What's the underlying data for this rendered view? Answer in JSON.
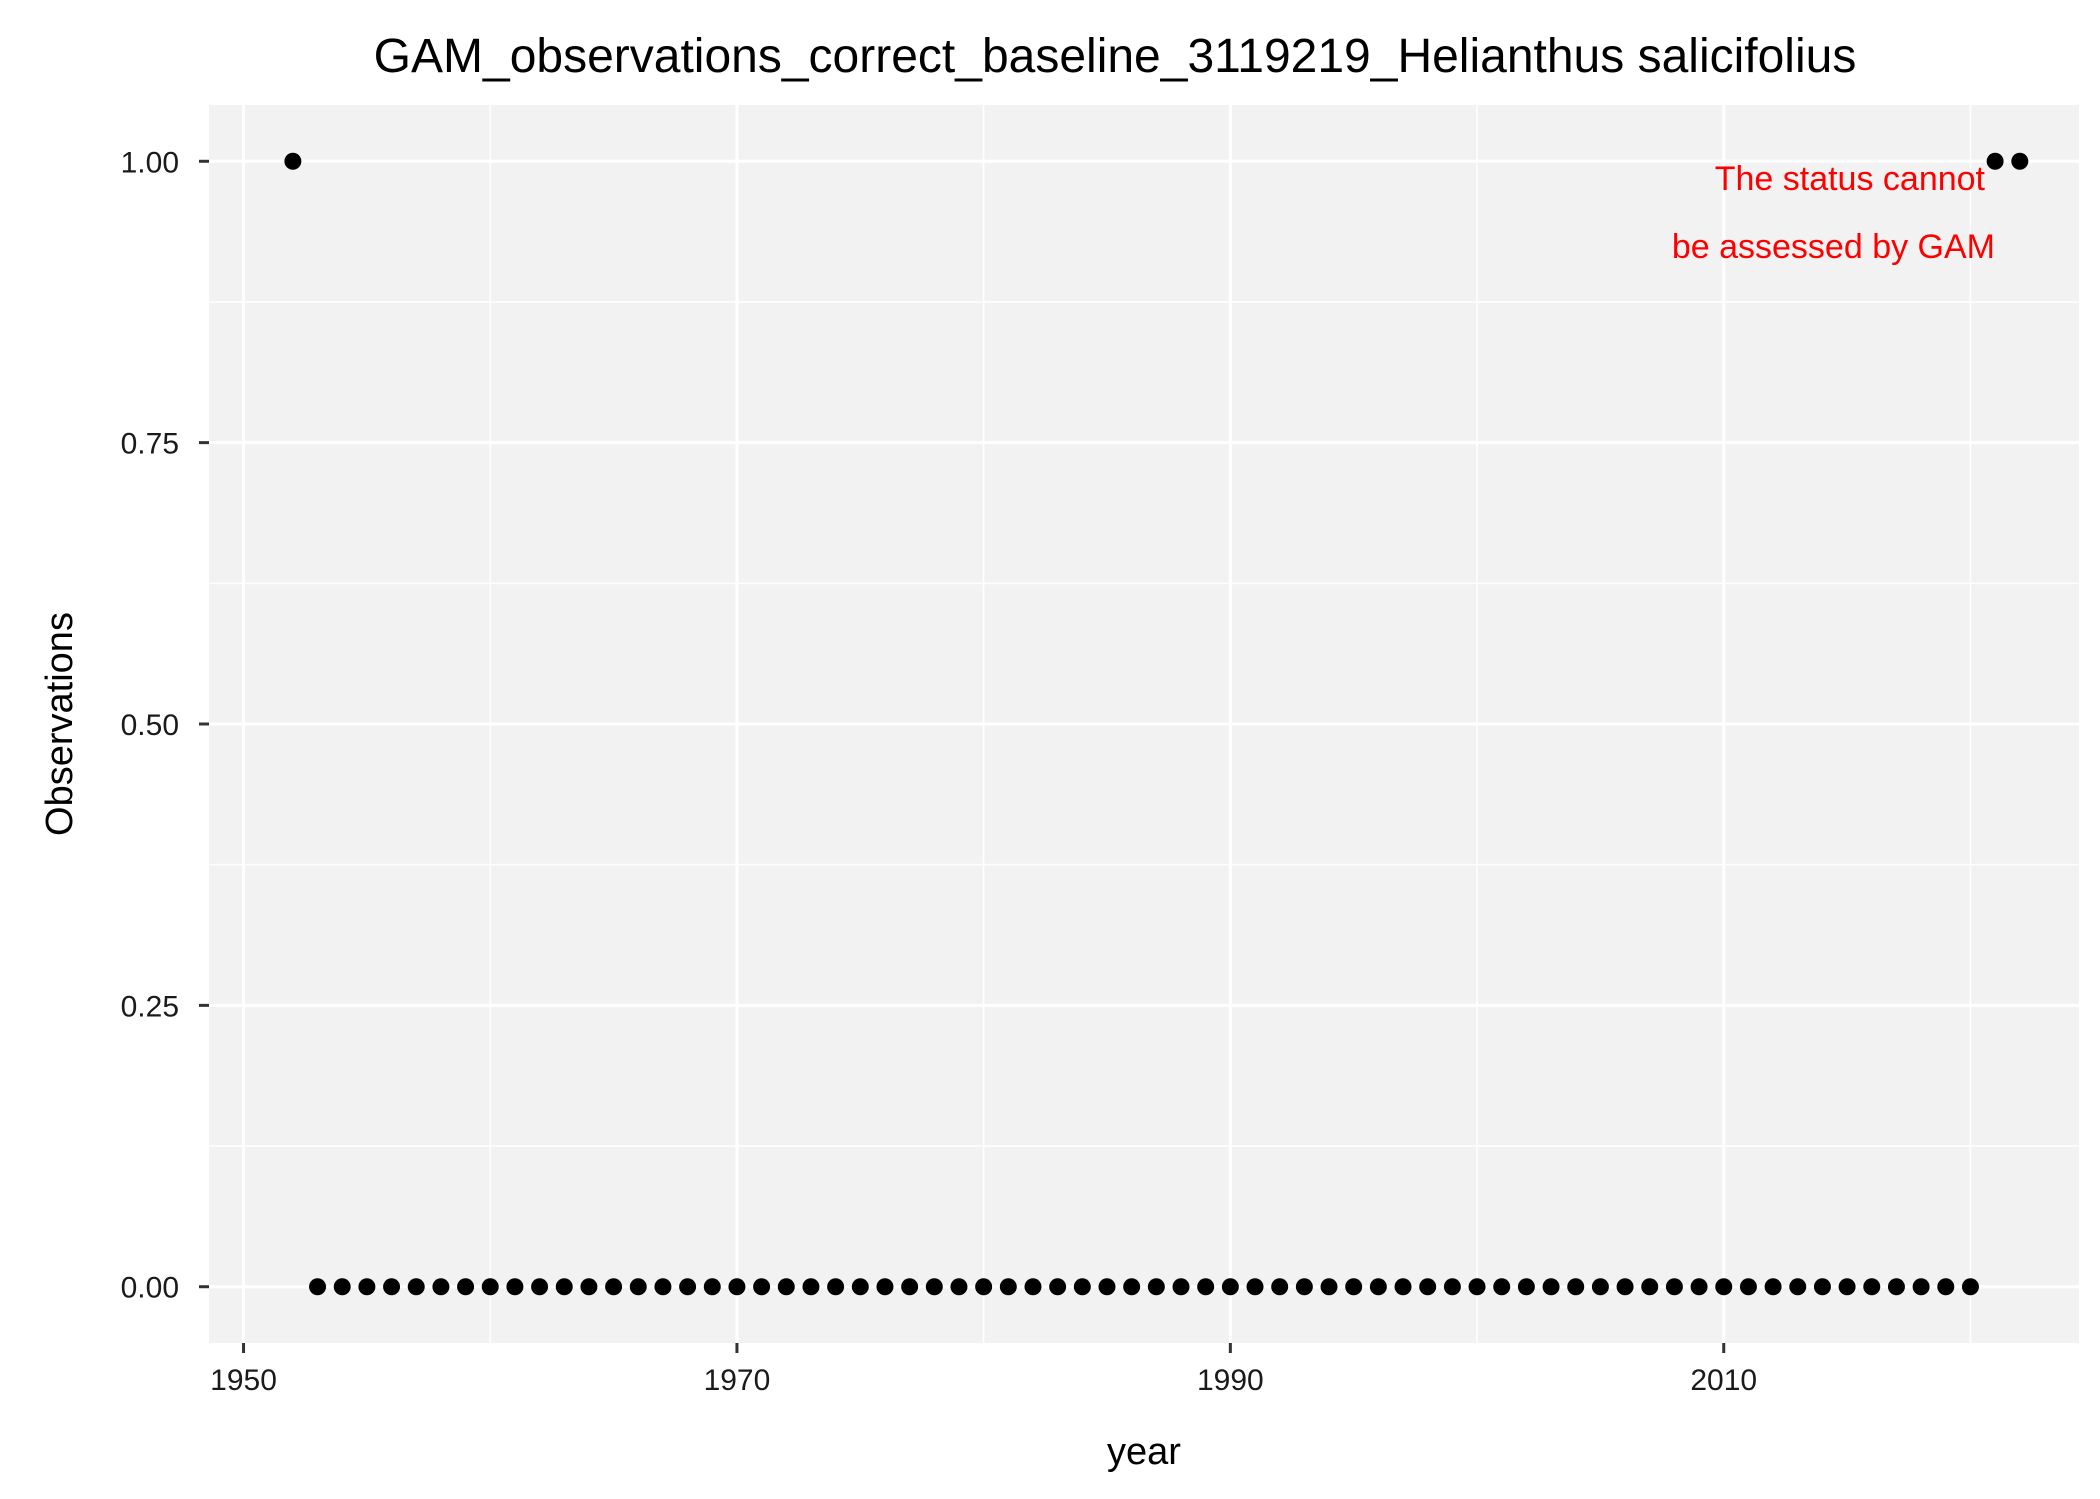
{
  "chart_data": {
    "type": "scatter",
    "title": "GAM_observations_correct_baseline_3119219_Helianthus salicifolius",
    "xlabel": "year",
    "ylabel": "Observations",
    "xlim": [
      1948.6,
      2024.4
    ],
    "ylim": [
      -0.05,
      1.05
    ],
    "x_ticks": [
      1950,
      1970,
      1990,
      2010
    ],
    "x_tick_labels": [
      "1950",
      "1970",
      "1990",
      "2010"
    ],
    "y_ticks": [
      0,
      0.25,
      0.5,
      0.75,
      1
    ],
    "y_tick_labels": [
      "0.00",
      "0.25",
      "0.50",
      "0.75",
      "1.00"
    ],
    "grid": true,
    "annotation": {
      "lines": [
        "The status cannot",
        "be assessed by GAM"
      ],
      "color": "#ff0000"
    },
    "point_color": "#000000",
    "background_color": "#f2f2f2",
    "points": [
      {
        "x": 1952,
        "y": 1
      },
      {
        "x": 1953,
        "y": 0
      },
      {
        "x": 1954,
        "y": 0
      },
      {
        "x": 1955,
        "y": 0
      },
      {
        "x": 1956,
        "y": 0
      },
      {
        "x": 1957,
        "y": 0
      },
      {
        "x": 1958,
        "y": 0
      },
      {
        "x": 1959,
        "y": 0
      },
      {
        "x": 1960,
        "y": 0
      },
      {
        "x": 1961,
        "y": 0
      },
      {
        "x": 1962,
        "y": 0
      },
      {
        "x": 1963,
        "y": 0
      },
      {
        "x": 1964,
        "y": 0
      },
      {
        "x": 1965,
        "y": 0
      },
      {
        "x": 1966,
        "y": 0
      },
      {
        "x": 1967,
        "y": 0
      },
      {
        "x": 1968,
        "y": 0
      },
      {
        "x": 1969,
        "y": 0
      },
      {
        "x": 1970,
        "y": 0
      },
      {
        "x": 1971,
        "y": 0
      },
      {
        "x": 1972,
        "y": 0
      },
      {
        "x": 1973,
        "y": 0
      },
      {
        "x": 1974,
        "y": 0
      },
      {
        "x": 1975,
        "y": 0
      },
      {
        "x": 1976,
        "y": 0
      },
      {
        "x": 1977,
        "y": 0
      },
      {
        "x": 1978,
        "y": 0
      },
      {
        "x": 1979,
        "y": 0
      },
      {
        "x": 1980,
        "y": 0
      },
      {
        "x": 1981,
        "y": 0
      },
      {
        "x": 1982,
        "y": 0
      },
      {
        "x": 1983,
        "y": 0
      },
      {
        "x": 1984,
        "y": 0
      },
      {
        "x": 1985,
        "y": 0
      },
      {
        "x": 1986,
        "y": 0
      },
      {
        "x": 1987,
        "y": 0
      },
      {
        "x": 1988,
        "y": 0
      },
      {
        "x": 1989,
        "y": 0
      },
      {
        "x": 1990,
        "y": 0
      },
      {
        "x": 1991,
        "y": 0
      },
      {
        "x": 1992,
        "y": 0
      },
      {
        "x": 1993,
        "y": 0
      },
      {
        "x": 1994,
        "y": 0
      },
      {
        "x": 1995,
        "y": 0
      },
      {
        "x": 1996,
        "y": 0
      },
      {
        "x": 1997,
        "y": 0
      },
      {
        "x": 1998,
        "y": 0
      },
      {
        "x": 1999,
        "y": 0
      },
      {
        "x": 2000,
        "y": 0
      },
      {
        "x": 2001,
        "y": 0
      },
      {
        "x": 2002,
        "y": 0
      },
      {
        "x": 2003,
        "y": 0
      },
      {
        "x": 2004,
        "y": 0
      },
      {
        "x": 2005,
        "y": 0
      },
      {
        "x": 2006,
        "y": 0
      },
      {
        "x": 2007,
        "y": 0
      },
      {
        "x": 2008,
        "y": 0
      },
      {
        "x": 2009,
        "y": 0
      },
      {
        "x": 2010,
        "y": 0
      },
      {
        "x": 2011,
        "y": 0
      },
      {
        "x": 2012,
        "y": 0
      },
      {
        "x": 2013,
        "y": 0
      },
      {
        "x": 2014,
        "y": 0
      },
      {
        "x": 2015,
        "y": 0
      },
      {
        "x": 2016,
        "y": 0
      },
      {
        "x": 2017,
        "y": 0
      },
      {
        "x": 2018,
        "y": 0
      },
      {
        "x": 2019,
        "y": 0
      },
      {
        "x": 2020,
        "y": 0
      },
      {
        "x": 2021,
        "y": 1
      },
      {
        "x": 2022,
        "y": 1
      }
    ]
  }
}
